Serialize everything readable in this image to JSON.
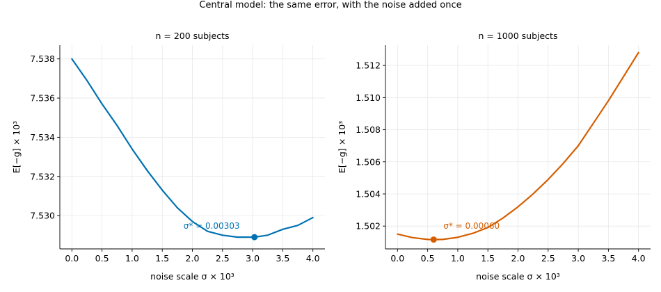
{
  "figure": {
    "suptitle": "Central model: the same error, with the noise added once"
  },
  "chart_data": [
    {
      "type": "line",
      "title": "n = 200 subjects",
      "xlabel": "noise scale σ × 10³",
      "ylabel": "E[−g] × 10³",
      "color": "#0072b2",
      "xlim": [
        -0.2,
        4.2
      ],
      "ylim": [
        7.5283,
        7.5387
      ],
      "xticks": [
        0.0,
        0.5,
        1.0,
        1.5,
        2.0,
        2.5,
        3.0,
        3.5,
        4.0
      ],
      "xtick_labels": [
        "0.0",
        "0.5",
        "1.0",
        "1.5",
        "2.0",
        "2.5",
        "3.0",
        "3.5",
        "4.0"
      ],
      "yticks": [
        7.53,
        7.532,
        7.534,
        7.536,
        7.538
      ],
      "ytick_labels": [
        "7.530",
        "7.532",
        "7.534",
        "7.536",
        "7.538"
      ],
      "series": [
        {
          "x": [
            0.0,
            0.25,
            0.5,
            0.75,
            1.0,
            1.25,
            1.5,
            1.75,
            2.0,
            2.25,
            2.5,
            2.75,
            3.0,
            3.03,
            3.25,
            3.5,
            3.75,
            4.0
          ],
          "y": [
            7.538,
            7.5369,
            7.5357,
            7.5346,
            7.5334,
            7.5323,
            7.5313,
            7.5304,
            7.5297,
            7.5292,
            7.529,
            7.5289,
            7.5289,
            7.5289,
            7.529,
            7.5293,
            7.5295,
            7.5299
          ]
        }
      ],
      "optimum": {
        "x": 3.03,
        "y": 7.5289
      },
      "annotation": "σ* = 0.00303"
    },
    {
      "type": "line",
      "title": "n = 1000 subjects",
      "xlabel": "noise scale σ × 10³",
      "ylabel": "E[−g] × 10³",
      "color": "#d55e00",
      "xlim": [
        -0.2,
        4.2
      ],
      "ylim": [
        1.50058,
        1.51326
      ],
      "xticks": [
        0.0,
        0.5,
        1.0,
        1.5,
        2.0,
        2.5,
        3.0,
        3.5,
        4.0
      ],
      "xtick_labels": [
        "0.0",
        "0.5",
        "1.0",
        "1.5",
        "2.0",
        "2.5",
        "3.0",
        "3.5",
        "4.0"
      ],
      "yticks": [
        1.502,
        1.504,
        1.506,
        1.508,
        1.51,
        1.512
      ],
      "ytick_labels": [
        "1.502",
        "1.504",
        "1.506",
        "1.508",
        "1.510",
        "1.512"
      ],
      "series": [
        {
          "x": [
            0.0,
            0.25,
            0.5,
            0.6,
            0.75,
            1.0,
            1.25,
            1.5,
            1.75,
            2.0,
            2.25,
            2.5,
            2.75,
            3.0,
            3.25,
            3.5,
            3.75,
            4.0
          ],
          "y": [
            1.5015,
            1.50128,
            1.50117,
            1.50116,
            1.50117,
            1.5013,
            1.50155,
            1.50191,
            1.5025,
            1.5032,
            1.504,
            1.5049,
            1.5059,
            1.507,
            1.5084,
            1.5098,
            1.5113,
            1.5128
          ]
        }
      ],
      "optimum": {
        "x": 0.6,
        "y": 1.50116
      },
      "annotation": "σ* = 0.00060"
    }
  ]
}
